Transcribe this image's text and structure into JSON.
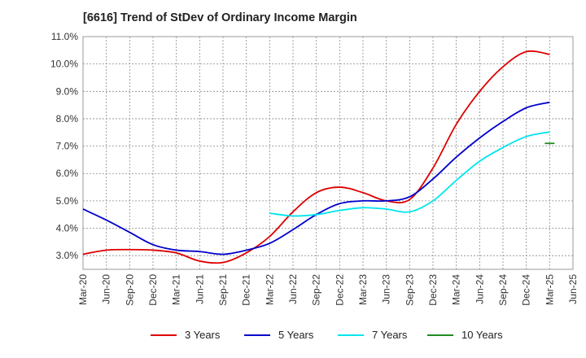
{
  "title": "[6616]  Trend of StDev of Ordinary Income Margin",
  "chart_data": {
    "type": "line",
    "title": "[6616]  Trend of StDev of Ordinary Income Margin",
    "xlabel": "",
    "ylabel": "",
    "categories": [
      "Mar-20",
      "Jun-20",
      "Sep-20",
      "Dec-20",
      "Mar-21",
      "Jun-21",
      "Sep-21",
      "Dec-21",
      "Mar-22",
      "Jun-22",
      "Sep-22",
      "Dec-22",
      "Mar-23",
      "Jun-23",
      "Sep-23",
      "Dec-23",
      "Mar-24",
      "Jun-24",
      "Sep-24",
      "Dec-24",
      "Mar-25",
      "Jun-25"
    ],
    "y_ticks": [
      "3.0%",
      "4.0%",
      "5.0%",
      "6.0%",
      "7.0%",
      "8.0%",
      "9.0%",
      "10.0%",
      "11.0%"
    ],
    "ylim": [
      2.5,
      11.0
    ],
    "grid": true,
    "legend_position": "bottom",
    "series": [
      {
        "name": "3 Years",
        "color": "#dd0000",
        "values": [
          3.05,
          3.2,
          3.22,
          3.2,
          3.1,
          2.8,
          2.75,
          3.1,
          3.7,
          4.6,
          5.3,
          5.5,
          5.3,
          5.0,
          5.05,
          6.2,
          7.8,
          9.0,
          9.9,
          10.45,
          10.35,
          null
        ]
      },
      {
        "name": "5 Years",
        "color": "#0000cc",
        "values": [
          4.7,
          4.3,
          3.85,
          3.4,
          3.2,
          3.15,
          3.05,
          3.2,
          3.45,
          3.95,
          4.5,
          4.9,
          5.0,
          5.0,
          5.15,
          5.8,
          6.6,
          7.3,
          7.9,
          8.4,
          8.6,
          null
        ]
      },
      {
        "name": "7 Years",
        "color": "#00e5ee",
        "values": [
          null,
          null,
          null,
          null,
          null,
          null,
          null,
          null,
          4.55,
          4.45,
          4.5,
          4.65,
          4.75,
          4.7,
          4.6,
          5.0,
          5.75,
          6.45,
          6.95,
          7.35,
          7.52,
          null
        ]
      },
      {
        "name": "10 Years",
        "color": "#228b22",
        "values": [
          null,
          null,
          null,
          null,
          null,
          null,
          null,
          null,
          null,
          null,
          null,
          null,
          null,
          null,
          null,
          null,
          null,
          null,
          null,
          null,
          7.1,
          null
        ]
      }
    ]
  }
}
